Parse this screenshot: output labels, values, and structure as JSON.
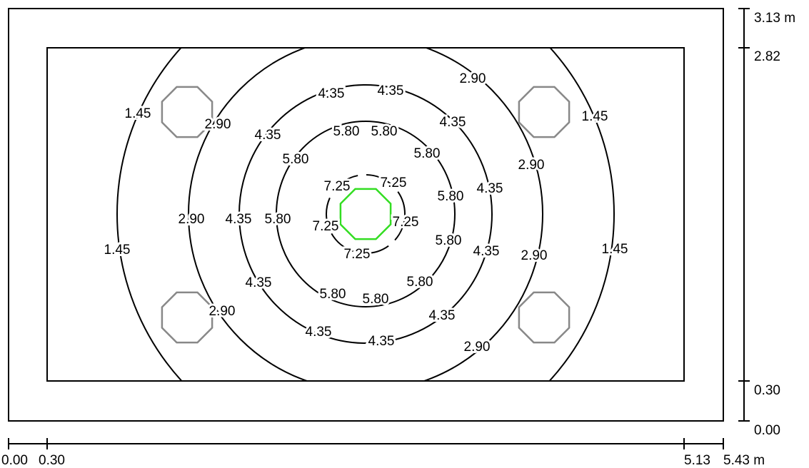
{
  "levels": [
    "1.45",
    "2.90",
    "4.35",
    "5.80",
    "7.25"
  ],
  "x_axis": [
    "0.00",
    "0.30",
    "5.13",
    "5.43 m"
  ],
  "y_axis": [
    "3.13 m",
    "2.82",
    "0.30",
    "0.00"
  ]
}
